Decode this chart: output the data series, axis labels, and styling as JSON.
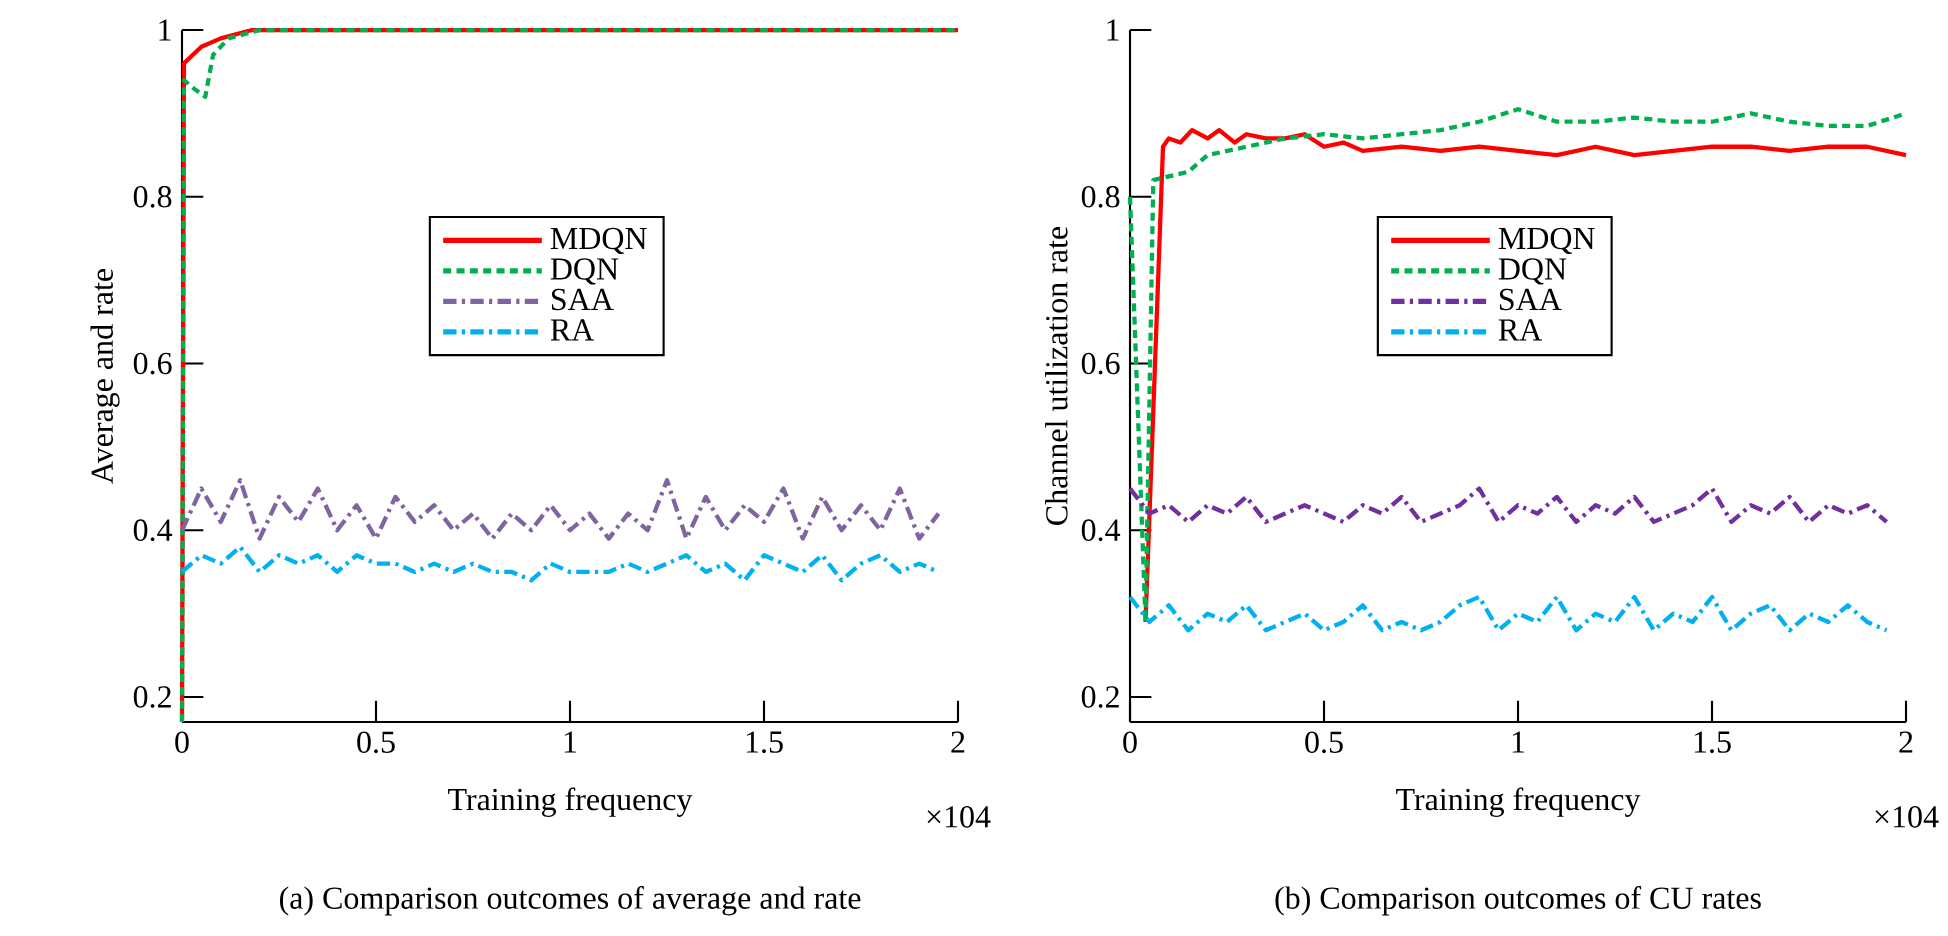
{
  "chart_data": [
    {
      "type": "line",
      "xlabel": "Training frequency",
      "ylabel": "Average and rate",
      "xlim": [
        0,
        2
      ],
      "ylim": [
        0.17,
        1
      ],
      "xticks": [
        0,
        0.5,
        1,
        1.5,
        2
      ],
      "yticks": [
        0.2,
        0.4,
        0.6,
        0.8,
        1
      ],
      "legend": "center",
      "grid": false,
      "marker": "none",
      "annotations": [
        "×104",
        "(a) Comparison outcomes of average and rate"
      ],
      "series": [
        {
          "name": "MDQN",
          "color": "#ff0000",
          "line_style": "solid",
          "x": [
            0,
            0.005,
            0.05,
            0.1,
            0.18,
            2
          ],
          "values": [
            0.17,
            0.96,
            0.98,
            0.99,
            1.0,
            1.0
          ]
        },
        {
          "name": "DQN",
          "color": "#00b050",
          "line_style": "dashed",
          "x": [
            0,
            0.005,
            0.03,
            0.06,
            0.08,
            0.12,
            0.2,
            2
          ],
          "values": [
            0.17,
            0.94,
            0.93,
            0.92,
            0.97,
            0.99,
            1.0,
            1.0
          ]
        },
        {
          "name": "SAA",
          "color": "#8064a2",
          "line_style": "dashdot",
          "x": [
            0,
            0.05,
            0.1,
            0.15,
            0.2,
            0.25,
            0.3,
            0.35,
            0.4,
            0.45,
            0.5,
            0.55,
            0.6,
            0.65,
            0.7,
            0.75,
            0.8,
            0.85,
            0.9,
            0.95,
            1.0,
            1.05,
            1.1,
            1.15,
            1.2,
            1.25,
            1.3,
            1.35,
            1.4,
            1.45,
            1.5,
            1.55,
            1.6,
            1.65,
            1.7,
            1.75,
            1.8,
            1.85,
            1.9,
            1.95
          ],
          "values": [
            0.4,
            0.45,
            0.41,
            0.46,
            0.39,
            0.44,
            0.41,
            0.45,
            0.4,
            0.43,
            0.39,
            0.44,
            0.41,
            0.43,
            0.4,
            0.42,
            0.39,
            0.42,
            0.4,
            0.43,
            0.4,
            0.42,
            0.39,
            0.42,
            0.4,
            0.46,
            0.39,
            0.44,
            0.4,
            0.43,
            0.41,
            0.45,
            0.39,
            0.44,
            0.4,
            0.43,
            0.4,
            0.45,
            0.39,
            0.42
          ]
        },
        {
          "name": "RA",
          "color": "#00b0f0",
          "line_style": "dashdot",
          "x": [
            0,
            0.05,
            0.1,
            0.15,
            0.2,
            0.25,
            0.3,
            0.35,
            0.4,
            0.45,
            0.5,
            0.55,
            0.6,
            0.65,
            0.7,
            0.75,
            0.8,
            0.85,
            0.9,
            0.95,
            1.0,
            1.05,
            1.1,
            1.15,
            1.2,
            1.25,
            1.3,
            1.35,
            1.4,
            1.45,
            1.5,
            1.55,
            1.6,
            1.65,
            1.7,
            1.75,
            1.8,
            1.85,
            1.9,
            1.95
          ],
          "values": [
            0.35,
            0.37,
            0.36,
            0.38,
            0.35,
            0.37,
            0.36,
            0.37,
            0.35,
            0.37,
            0.36,
            0.36,
            0.35,
            0.36,
            0.35,
            0.36,
            0.35,
            0.35,
            0.34,
            0.36,
            0.35,
            0.35,
            0.35,
            0.36,
            0.35,
            0.36,
            0.37,
            0.35,
            0.36,
            0.34,
            0.37,
            0.36,
            0.35,
            0.37,
            0.34,
            0.36,
            0.37,
            0.35,
            0.36,
            0.35
          ]
        }
      ]
    },
    {
      "type": "line",
      "xlabel": "Training frequency",
      "ylabel": "Channel utilization rate",
      "xlim": [
        0,
        2
      ],
      "ylim": [
        0.17,
        1
      ],
      "xticks": [
        0,
        0.5,
        1,
        1.5,
        2
      ],
      "yticks": [
        0.2,
        0.4,
        0.6,
        0.8,
        1
      ],
      "legend": "center",
      "grid": false,
      "marker": "none",
      "annotations": [
        "×104",
        "(b) Comparison outcomes of CU rates"
      ],
      "series": [
        {
          "name": "MDQN",
          "color": "#ff0000",
          "line_style": "solid",
          "x": [
            0.04,
            0.085,
            0.1,
            0.13,
            0.16,
            0.2,
            0.23,
            0.27,
            0.3,
            0.35,
            0.4,
            0.45,
            0.5,
            0.55,
            0.6,
            0.7,
            0.8,
            0.9,
            1.0,
            1.1,
            1.2,
            1.3,
            1.4,
            1.5,
            1.6,
            1.7,
            1.8,
            1.9,
            2.0
          ],
          "values": [
            0.29,
            0.86,
            0.87,
            0.865,
            0.88,
            0.87,
            0.88,
            0.865,
            0.875,
            0.87,
            0.87,
            0.875,
            0.86,
            0.865,
            0.855,
            0.86,
            0.855,
            0.86,
            0.855,
            0.85,
            0.86,
            0.85,
            0.855,
            0.86,
            0.86,
            0.855,
            0.86,
            0.86,
            0.85
          ]
        },
        {
          "name": "DQN",
          "color": "#00b050",
          "line_style": "dashed",
          "x": [
            0,
            0.04,
            0.06,
            0.15,
            0.2,
            0.3,
            0.4,
            0.5,
            0.6,
            0.7,
            0.8,
            0.9,
            1.0,
            1.1,
            1.2,
            1.3,
            1.4,
            1.5,
            1.6,
            1.7,
            1.8,
            1.9,
            2.0
          ],
          "values": [
            0.8,
            0.29,
            0.82,
            0.83,
            0.85,
            0.86,
            0.87,
            0.875,
            0.87,
            0.875,
            0.88,
            0.89,
            0.905,
            0.89,
            0.89,
            0.895,
            0.89,
            0.89,
            0.9,
            0.89,
            0.885,
            0.885,
            0.9
          ]
        },
        {
          "name": "SAA",
          "color": "#7030a0",
          "line_style": "dashdot",
          "x": [
            0,
            0.05,
            0.1,
            0.15,
            0.2,
            0.25,
            0.3,
            0.35,
            0.4,
            0.45,
            0.5,
            0.55,
            0.6,
            0.65,
            0.7,
            0.75,
            0.8,
            0.85,
            0.9,
            0.95,
            1.0,
            1.05,
            1.1,
            1.15,
            1.2,
            1.25,
            1.3,
            1.35,
            1.4,
            1.45,
            1.5,
            1.55,
            1.6,
            1.65,
            1.7,
            1.75,
            1.8,
            1.85,
            1.9,
            1.95
          ],
          "values": [
            0.45,
            0.42,
            0.43,
            0.41,
            0.43,
            0.42,
            0.44,
            0.41,
            0.42,
            0.43,
            0.42,
            0.41,
            0.43,
            0.42,
            0.44,
            0.41,
            0.42,
            0.43,
            0.45,
            0.41,
            0.43,
            0.42,
            0.44,
            0.41,
            0.43,
            0.42,
            0.44,
            0.41,
            0.42,
            0.43,
            0.45,
            0.41,
            0.43,
            0.42,
            0.44,
            0.41,
            0.43,
            0.42,
            0.43,
            0.41
          ]
        },
        {
          "name": "RA",
          "color": "#00b0f0",
          "line_style": "dashdot",
          "x": [
            0,
            0.05,
            0.1,
            0.15,
            0.2,
            0.25,
            0.3,
            0.35,
            0.4,
            0.45,
            0.5,
            0.55,
            0.6,
            0.65,
            0.7,
            0.75,
            0.8,
            0.85,
            0.9,
            0.95,
            1.0,
            1.05,
            1.1,
            1.15,
            1.2,
            1.25,
            1.3,
            1.35,
            1.4,
            1.45,
            1.5,
            1.55,
            1.6,
            1.65,
            1.7,
            1.75,
            1.8,
            1.85,
            1.9,
            1.95
          ],
          "values": [
            0.32,
            0.29,
            0.31,
            0.28,
            0.3,
            0.29,
            0.31,
            0.28,
            0.29,
            0.3,
            0.28,
            0.29,
            0.31,
            0.28,
            0.29,
            0.28,
            0.29,
            0.31,
            0.32,
            0.28,
            0.3,
            0.29,
            0.32,
            0.28,
            0.3,
            0.29,
            0.32,
            0.28,
            0.3,
            0.29,
            0.32,
            0.28,
            0.3,
            0.31,
            0.28,
            0.3,
            0.29,
            0.31,
            0.29,
            0.28
          ]
        }
      ]
    }
  ]
}
